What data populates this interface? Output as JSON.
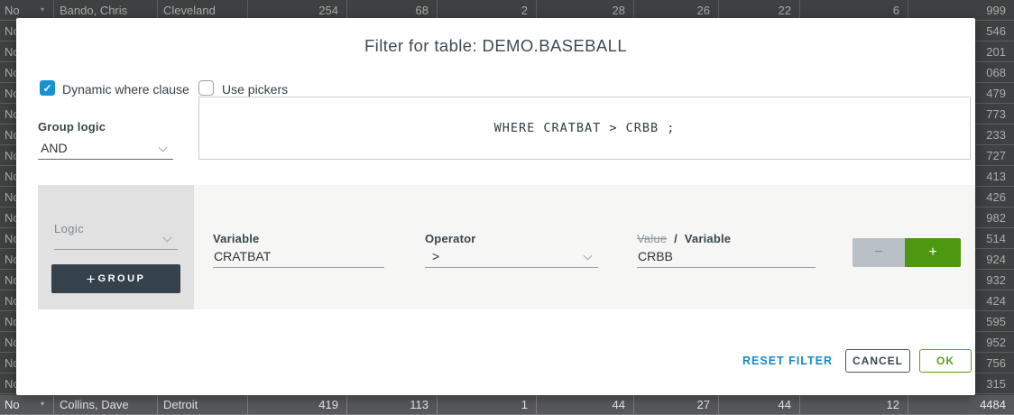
{
  "icons": {
    "dropdown_arrow": "▾",
    "check": "✓",
    "plus": "+",
    "minus": "−"
  },
  "colors": {
    "checkbox_blue": "#1791cf",
    "link_blue": "#1588c9",
    "add_green": "#4d9711",
    "ok_green": "#5c9e1d",
    "slate": "#37474f"
  },
  "dialog": {
    "title": "Filter for table: DEMO.BASEBALL",
    "dynamic_where_label": "Dynamic where clause",
    "dynamic_where_checked": true,
    "use_pickers_label": "Use pickers",
    "use_pickers_checked": false,
    "group_logic_label": "Group logic",
    "group_logic_value": "AND",
    "where_clause": "WHERE CRATBAT > CRBB ;",
    "builder": {
      "logic_label": "Logic",
      "logic_value": "",
      "group_button_label": "GROUP",
      "variable_label": "Variable",
      "variable_value": "CRATBAT",
      "operator_label": "Operator",
      "operator_value": ">",
      "value_label": "Value",
      "value_separator": "/",
      "variable_alt_label": "Variable",
      "value_variable_value": "CRBB"
    },
    "footer": {
      "reset_label": "RESET FILTER",
      "cancel_label": "CANCEL",
      "ok_label": "OK"
    }
  },
  "table": {
    "rows": [
      [
        "No",
        "Bando, Chris",
        "Cleveland",
        "254",
        "68",
        "2",
        "28",
        "26",
        "22",
        "6",
        "999"
      ],
      [
        "No",
        "",
        "",
        "",
        "",
        "",
        "",
        "",
        "",
        "",
        "546"
      ],
      [
        "No",
        "",
        "",
        "",
        "",
        "",
        "",
        "",
        "",
        "",
        "201"
      ],
      [
        "No",
        "",
        "",
        "",
        "",
        "",
        "",
        "",
        "",
        "",
        "068"
      ],
      [
        "No",
        "",
        "",
        "",
        "",
        "",
        "",
        "",
        "",
        "",
        "479"
      ],
      [
        "No",
        "",
        "",
        "",
        "",
        "",
        "",
        "",
        "",
        "",
        "773"
      ],
      [
        "No",
        "",
        "",
        "",
        "",
        "",
        "",
        "",
        "",
        "",
        "233"
      ],
      [
        "No",
        "",
        "",
        "",
        "",
        "",
        "",
        "",
        "",
        "",
        "727"
      ],
      [
        "No",
        "",
        "",
        "",
        "",
        "",
        "",
        "",
        "",
        "",
        "413"
      ],
      [
        "No",
        "",
        "",
        "",
        "",
        "",
        "",
        "",
        "",
        "",
        "426"
      ],
      [
        "No",
        "",
        "",
        "",
        "",
        "",
        "",
        "",
        "",
        "",
        "982"
      ],
      [
        "No",
        "",
        "",
        "",
        "",
        "",
        "",
        "",
        "",
        "",
        "514"
      ],
      [
        "No",
        "",
        "",
        "",
        "",
        "",
        "",
        "",
        "",
        "",
        "924"
      ],
      [
        "No",
        "",
        "",
        "",
        "",
        "",
        "",
        "",
        "",
        "",
        "932"
      ],
      [
        "No",
        "",
        "",
        "",
        "",
        "",
        "",
        "",
        "",
        "",
        "424"
      ],
      [
        "No",
        "",
        "",
        "",
        "",
        "",
        "",
        "",
        "",
        "",
        "595"
      ],
      [
        "No",
        "",
        "",
        "",
        "",
        "",
        "",
        "",
        "",
        "",
        "952"
      ],
      [
        "No",
        "",
        "",
        "",
        "",
        "",
        "",
        "",
        "",
        "",
        "756"
      ],
      [
        "No",
        "",
        "",
        "",
        "",
        "",
        "",
        "",
        "",
        "",
        "315"
      ],
      [
        "No",
        "Collins, Dave",
        "Detroit",
        "419",
        "113",
        "1",
        "44",
        "27",
        "44",
        "12",
        "4484"
      ]
    ]
  }
}
